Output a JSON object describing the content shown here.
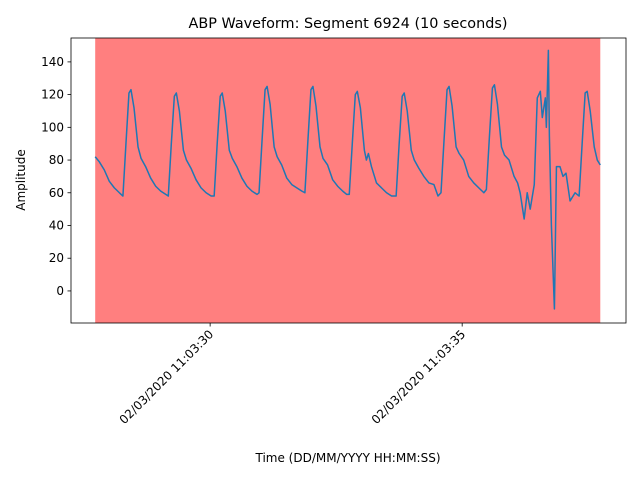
{
  "chart_data": {
    "type": "line",
    "title": "ABP Waveform: Segment 6924 (10 seconds)",
    "xlabel": "Time (DD/MM/YYYY HH:MM:SS)",
    "ylabel": "Amplitude",
    "xlim": [
      27.24,
      38.25
    ],
    "ylim": [
      -19.6,
      154.6
    ],
    "xticks": [
      {
        "value": 30,
        "label": "02/03/2020 11:03:30"
      },
      {
        "value": 35,
        "label": "02/03/2020 11:03:35"
      }
    ],
    "yticks": [
      0,
      20,
      40,
      60,
      80,
      100,
      120,
      140
    ],
    "highlight": {
      "xlim": [
        27.72,
        37.74
      ],
      "color": "#ff0000",
      "alpha": 0.5
    },
    "grid": false,
    "series": [
      {
        "name": "ABP",
        "color": "#1f77b4",
        "x": [
          27.72,
          27.8,
          27.9,
          28.0,
          28.1,
          28.2,
          28.27,
          28.33,
          28.39,
          28.43,
          28.49,
          28.57,
          28.63,
          28.72,
          28.82,
          28.92,
          29.02,
          29.12,
          29.17,
          29.23,
          29.29,
          29.33,
          29.39,
          29.47,
          29.53,
          29.62,
          29.72,
          29.82,
          29.92,
          30.02,
          30.08,
          30.14,
          30.2,
          30.24,
          30.3,
          30.38,
          30.44,
          30.53,
          30.63,
          30.73,
          30.83,
          30.93,
          30.97,
          31.03,
          31.09,
          31.13,
          31.19,
          31.27,
          31.33,
          31.42,
          31.52,
          31.62,
          31.72,
          31.82,
          31.88,
          31.94,
          32.0,
          32.04,
          32.1,
          32.18,
          32.24,
          32.33,
          32.43,
          32.53,
          32.63,
          32.71,
          32.76,
          32.82,
          32.88,
          32.92,
          32.98,
          33.06,
          33.1,
          33.14,
          33.2,
          33.3,
          33.4,
          33.5,
          33.6,
          33.69,
          33.75,
          33.81,
          33.85,
          33.91,
          33.99,
          34.05,
          34.14,
          34.24,
          34.34,
          34.44,
          34.52,
          34.58,
          34.64,
          34.7,
          34.74,
          34.8,
          34.88,
          34.94,
          35.03,
          35.13,
          35.23,
          35.33,
          35.43,
          35.48,
          35.54,
          35.6,
          35.64,
          35.7,
          35.78,
          35.84,
          35.93,
          36.03,
          36.1,
          36.15,
          36.23,
          36.29,
          36.35,
          36.43,
          36.49,
          36.55,
          36.59,
          36.65,
          36.67,
          36.71,
          36.73,
          36.77,
          36.83,
          36.87,
          36.94,
          37.0,
          37.06,
          37.14,
          37.24,
          37.32,
          37.38,
          37.44,
          37.48,
          37.54,
          37.62,
          37.68,
          37.74
        ],
        "values": [
          82,
          79,
          74,
          67,
          63,
          60,
          58,
          90,
          121,
          123,
          112,
          88,
          81,
          76,
          69,
          64,
          61,
          59,
          58,
          90,
          119,
          121,
          110,
          86,
          80,
          75,
          68,
          63,
          60,
          58,
          58,
          90,
          119,
          121,
          110,
          86,
          81,
          76,
          69,
          64,
          61,
          59,
          60,
          92,
          123,
          125,
          114,
          88,
          82,
          77,
          69,
          65,
          63,
          61,
          60,
          92,
          123,
          125,
          113,
          88,
          81,
          77,
          68,
          64,
          61,
          59,
          59,
          90,
          120,
          122,
          112,
          86,
          80,
          84,
          76,
          66,
          63,
          60,
          58,
          58,
          90,
          119,
          121,
          110,
          86,
          80,
          75,
          70,
          66,
          65,
          58,
          60,
          92,
          123,
          125,
          113,
          88,
          84,
          80,
          70,
          66,
          63,
          60,
          62,
          94,
          124,
          126,
          114,
          88,
          83,
          80,
          70,
          66,
          60,
          44,
          60,
          50,
          65,
          118,
          122,
          106,
          118,
          100,
          147,
          95,
          40,
          -11,
          76,
          76,
          70,
          72,
          55,
          60,
          58,
          90,
          121,
          122,
          110,
          88,
          80,
          77
        ]
      }
    ]
  }
}
